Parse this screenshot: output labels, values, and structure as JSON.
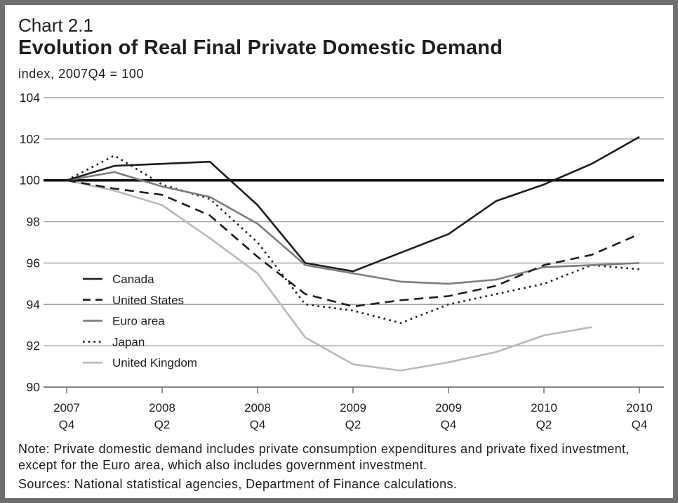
{
  "header": {
    "chart_number": "Chart 2.1"
  },
  "colors": {
    "frame": "#6e6e6e",
    "grid": "#a0a0a0",
    "axis": "#5e5e5e",
    "baseline": "#111111",
    "text": "#1e1e1e"
  },
  "chart_data": {
    "type": "line",
    "title": "Evolution of Real Final Private Domestic Demand",
    "ylabel": "index, 2007Q4 = 100",
    "ylim": [
      90,
      104
    ],
    "y_ticks": [
      104,
      102,
      100,
      98,
      96,
      94,
      92,
      90
    ],
    "x": [
      "2007Q4",
      "2008Q1",
      "2008Q2",
      "2008Q3",
      "2008Q4",
      "2009Q1",
      "2009Q2",
      "2009Q3",
      "2009Q4",
      "2010Q1",
      "2010Q2",
      "2010Q3",
      "2010Q4"
    ],
    "x_tick_labels": [
      [
        "2007",
        "Q4"
      ],
      [
        "2008",
        "Q2"
      ],
      [
        "2008",
        "Q4"
      ],
      [
        "2009",
        "Q2"
      ],
      [
        "2009",
        "Q4"
      ],
      [
        "2010",
        "Q2"
      ],
      [
        "2010",
        "Q4"
      ]
    ],
    "grid": true,
    "baseline": 100,
    "legend": "lower-left",
    "series": [
      {
        "name": "Canada",
        "color": "#1c1c1c",
        "line_style": "solid",
        "values": [
          100,
          100.7,
          100.8,
          100.9,
          98.8,
          96.0,
          95.6,
          96.5,
          97.4,
          99.0,
          99.8,
          100.8,
          102.1
        ]
      },
      {
        "name": "United States",
        "color": "#1c1c1c",
        "line_style": "dashed",
        "values": [
          100,
          99.6,
          99.3,
          98.3,
          96.3,
          94.5,
          93.9,
          94.2,
          94.4,
          94.9,
          95.9,
          96.4,
          97.4
        ]
      },
      {
        "name": "Euro area",
        "color": "#7d7d7d",
        "line_style": "solid",
        "values": [
          100,
          100.4,
          99.7,
          99.2,
          97.9,
          95.9,
          95.5,
          95.1,
          95.0,
          95.2,
          95.8,
          95.9,
          96.0
        ]
      },
      {
        "name": "Japan",
        "color": "#1c1c1c",
        "line_style": "dotted",
        "values": [
          100,
          101.2,
          99.8,
          99.1,
          97.0,
          94.0,
          93.7,
          93.1,
          94.0,
          94.5,
          95.0,
          95.9,
          95.7
        ]
      },
      {
        "name": "United Kingdom",
        "color": "#b9b9b9",
        "line_style": "solid",
        "values": [
          100,
          99.5,
          98.8,
          97.2,
          95.5,
          92.4,
          91.1,
          90.8,
          91.2,
          91.7,
          92.5,
          92.9,
          null
        ]
      }
    ]
  },
  "notes": {
    "note_line_1": "Note: Private domestic demand includes private consumption expenditures and private fixed investment,",
    "note_line_2": "except for the Euro area, which also includes government investment.",
    "sources": "Sources: National statistical agencies, Department of Finance calculations."
  }
}
